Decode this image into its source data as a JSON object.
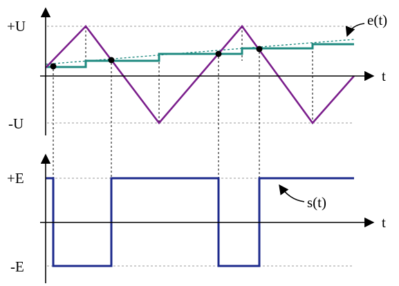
{
  "top_panel": {
    "label_plus_u": "+U",
    "label_minus_u": "-U",
    "axis_t": "t",
    "label_e": "e(t)"
  },
  "bottom_panel": {
    "label_plus_e": "+E",
    "label_minus_e": "-E",
    "axis_t": "t",
    "label_s": "s(t)"
  },
  "colors": {
    "triangle": "#7b1e8c",
    "staircase": "#1f8a80",
    "reference": "#1f8a80",
    "square": "#1c2a8c",
    "axes": "#000000"
  }
}
